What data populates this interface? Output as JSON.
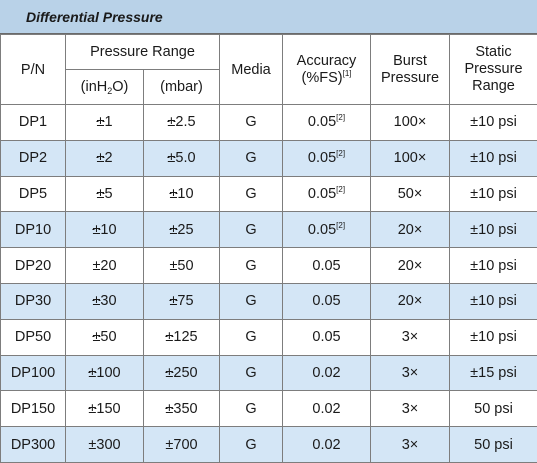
{
  "title": "Differential Pressure",
  "headers": {
    "pn": "P/N",
    "pressure_range": "Pressure Range",
    "inh2o_pre": "(inH",
    "inh2o_sub": "2",
    "inh2o_post": "O)",
    "mbar": "(mbar)",
    "media": "Media",
    "accuracy_line1": "Accuracy",
    "accuracy_line2": "(%FS)",
    "accuracy_note": "[1]",
    "burst_line1": "Burst",
    "burst_line2": "Pressure",
    "static_line1": "Static",
    "static_line2": "Pressure",
    "static_line3": "Range"
  },
  "rows": [
    {
      "pn": "DP1",
      "pm_sign": "±",
      "inh2o": "1",
      "mbar": "2.5",
      "media": "G",
      "accuracy": "0.05",
      "note": "[2]",
      "burst": "100×",
      "static": "±10 psi"
    },
    {
      "pn": "DP2",
      "pm_sign": "±",
      "inh2o": "2",
      "mbar": "5.0",
      "media": "G",
      "accuracy": "0.05",
      "note": "[2]",
      "burst": "100×",
      "static": "±10 psi"
    },
    {
      "pn": "DP5",
      "pm_sign": "±",
      "inh2o": "5",
      "mbar": "10",
      "media": "G",
      "accuracy": "0.05",
      "note": "[2]",
      "burst": "50×",
      "static": "±10 psi"
    },
    {
      "pn": "DP10",
      "pm_sign": "±",
      "inh2o": "10",
      "mbar": "25",
      "media": "G",
      "accuracy": "0.05",
      "note": "[2]",
      "burst": "20×",
      "static": "±10 psi"
    },
    {
      "pn": "DP20",
      "pm_sign": "±",
      "inh2o": "20",
      "mbar": "50",
      "media": "G",
      "accuracy": "0.05",
      "note": "",
      "burst": "20×",
      "static": "±10 psi"
    },
    {
      "pn": "DP30",
      "pm_sign": "±",
      "inh2o": "30",
      "mbar": "75",
      "media": "G",
      "accuracy": "0.05",
      "note": "",
      "burst": "20×",
      "static": "±10 psi"
    },
    {
      "pn": "DP50",
      "pm_sign": "±",
      "inh2o": "50",
      "mbar": "125",
      "media": "G",
      "accuracy": "0.05",
      "note": "",
      "burst": "3×",
      "static": "±10 psi"
    },
    {
      "pn": "DP100",
      "pm_sign": "±",
      "inh2o": "100",
      "mbar": "250",
      "media": "G",
      "accuracy": "0.02",
      "note": "",
      "burst": "3×",
      "static": "±15 psi"
    },
    {
      "pn": "DP150",
      "pm_sign": "±",
      "inh2o": "150",
      "mbar": "350",
      "media": "G",
      "accuracy": "0.02",
      "note": "",
      "burst": "3×",
      "static": "50 psi"
    },
    {
      "pn": "DP300",
      "pm_sign": "±",
      "inh2o": "300",
      "mbar": "700",
      "media": "G",
      "accuracy": "0.02",
      "note": "",
      "burst": "3×",
      "static": "50 psi"
    }
  ],
  "colors": {
    "title_bg": "#b9d2e8",
    "row_shade": "#d4e6f6",
    "row_plain": "#ffffff",
    "border": "#7d7d7d"
  }
}
